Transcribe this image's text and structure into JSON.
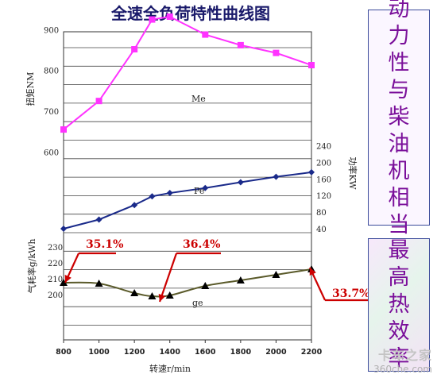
{
  "chart_data": {
    "type": "line",
    "title": "全速全负荷特性曲线图",
    "xlabel": "转速r/min",
    "x_ticks": [
      800,
      1000,
      1200,
      1400,
      1600,
      1800,
      2000,
      2200
    ],
    "xlim": [
      800,
      2200
    ],
    "grid": true,
    "series": [
      {
        "name": "Me",
        "axis": "torque",
        "color": "#ff33ff",
        "marker": "square",
        "x": [
          800,
          1000,
          1200,
          1300,
          1400,
          1600,
          1800,
          2000,
          2200
        ],
        "values": [
          655,
          725,
          852,
          925,
          932,
          888,
          862,
          843,
          813
        ]
      },
      {
        "name": "Pe",
        "axis": "power",
        "color": "#1a2a8a",
        "marker": "diamond",
        "x": [
          800,
          1000,
          1200,
          1300,
          1400,
          1600,
          1800,
          2000,
          2200
        ],
        "values": [
          40,
          62,
          97,
          118,
          126,
          138,
          152,
          165,
          176
        ]
      },
      {
        "name": "ge",
        "axis": "fuel",
        "color": "#000000",
        "line_color": "#5a5a2a",
        "marker": "triangle",
        "x": [
          800,
          1000,
          1200,
          1300,
          1400,
          1600,
          1800,
          2000,
          2200
        ],
        "values": [
          207.5,
          207,
          201,
          199,
          199.5,
          205.5,
          209,
          212.5,
          216
        ]
      }
    ],
    "axes": {
      "torque": {
        "label": "扭矩NM",
        "ticks": [
          600,
          700,
          800,
          900
        ],
        "range": [
          600,
          950
        ]
      },
      "power": {
        "label": "功率KW",
        "ticks": [
          40,
          80,
          120,
          160,
          200,
          240
        ],
        "range": [
          40,
          240
        ]
      },
      "fuel": {
        "label": "气耗率g/kWh",
        "ticks": [
          200,
          210,
          220,
          230
        ],
        "range": [
          200,
          230
        ]
      }
    },
    "annotations": [
      {
        "text": "35.1%",
        "color": "#cc0000"
      },
      {
        "text": "36.4%",
        "color": "#cc0000"
      },
      {
        "text": "33.7%",
        "color": "#cc0000"
      }
    ]
  },
  "side_panels": {
    "top_chars": [
      "动",
      "力",
      "性",
      "与",
      "柴",
      "油",
      "机",
      "相",
      "当"
    ],
    "bottom_chars": [
      "最",
      "高",
      "热",
      "效",
      "率"
    ]
  },
  "watermark": {
    "brand": "卡车之家",
    "url": "360che.com"
  }
}
